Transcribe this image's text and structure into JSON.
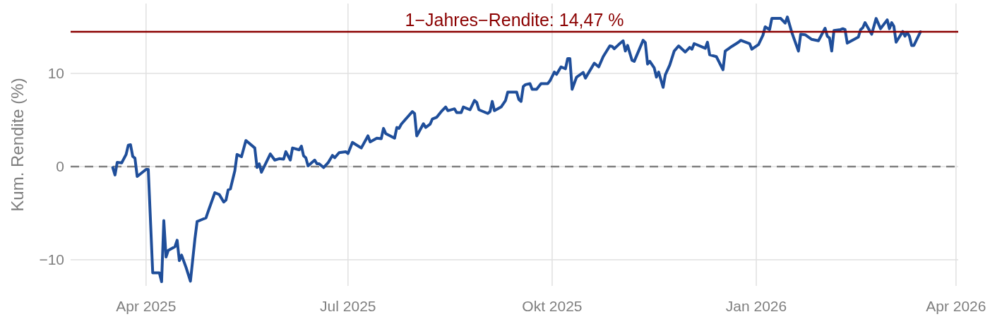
{
  "chart_data": {
    "type": "line",
    "ylabel": "Kum. Rendite (%)",
    "xlim": [
      "2025-02-26",
      "2026-04-02"
    ],
    "ylim": [
      -12.8,
      17.5
    ],
    "xticks": [
      {
        "value": "2025-04-01",
        "label": "Apr 2025"
      },
      {
        "value": "2025-07-01",
        "label": "Jul 2025"
      },
      {
        "value": "2025-10-01",
        "label": "Okt 2025"
      },
      {
        "value": "2026-01-01",
        "label": "Jan 2026"
      },
      {
        "value": "2026-04-01",
        "label": "Apr 2026"
      }
    ],
    "yticks": [
      {
        "value": -10,
        "label": "−10"
      },
      0,
      10
    ],
    "grid": true,
    "marker": "none",
    "line_style": "solid",
    "ref_lines": [
      {
        "axis": "y",
        "value": 0,
        "color": "#808080",
        "line_style": "dashed"
      },
      {
        "axis": "y",
        "value": 14.47,
        "label": "1−Jahres−Rendite: 14,47 %",
        "color": "#8b0000",
        "line_style": "solid"
      }
    ],
    "series": [
      {
        "color": "#1f4e9a",
        "x": [
          "2025-03-17",
          "2025-03-18",
          "2025-03-19",
          "2025-03-21",
          "2025-03-23",
          "2025-03-24",
          "2025-03-25",
          "2025-03-26",
          "2025-03-27",
          "2025-03-28",
          "2025-04-01",
          "2025-04-02",
          "2025-04-04",
          "2025-04-07",
          "2025-04-08",
          "2025-04-09",
          "2025-04-10",
          "2025-04-11",
          "2025-04-14",
          "2025-04-15",
          "2025-04-16",
          "2025-04-17",
          "2025-04-19",
          "2025-04-21",
          "2025-04-23",
          "2025-04-24",
          "2025-04-26",
          "2025-04-28",
          "2025-04-29",
          "2025-05-02",
          "2025-05-04",
          "2025-05-06",
          "2025-05-07",
          "2025-05-08",
          "2025-05-09",
          "2025-05-11",
          "2025-05-12",
          "2025-05-14",
          "2025-05-16",
          "2025-05-20",
          "2025-05-21",
          "2025-05-22",
          "2025-05-23",
          "2025-05-27",
          "2025-05-29",
          "2025-05-31",
          "2025-06-02",
          "2025-06-03",
          "2025-06-05",
          "2025-06-06",
          "2025-06-09",
          "2025-06-10",
          "2025-06-11",
          "2025-06-12",
          "2025-06-13",
          "2025-06-16",
          "2025-06-17",
          "2025-06-18",
          "2025-06-20",
          "2025-06-22",
          "2025-06-24",
          "2025-06-25",
          "2025-06-27",
          "2025-06-30",
          "2025-07-01",
          "2025-07-03",
          "2025-07-07",
          "2025-07-10",
          "2025-07-11",
          "2025-07-14",
          "2025-07-16",
          "2025-07-17",
          "2025-07-18",
          "2025-07-22",
          "2025-07-23",
          "2025-07-24",
          "2025-07-25",
          "2025-07-27",
          "2025-07-30",
          "2025-07-31",
          "2025-08-01",
          "2025-08-04",
          "2025-08-05",
          "2025-08-07",
          "2025-08-08",
          "2025-08-10",
          "2025-08-12",
          "2025-08-14",
          "2025-08-15",
          "2025-08-18",
          "2025-08-19",
          "2025-08-21",
          "2025-08-22",
          "2025-08-25",
          "2025-08-27",
          "2025-08-28",
          "2025-08-29",
          "2025-09-02",
          "2025-09-03",
          "2025-09-04",
          "2025-09-05",
          "2025-09-08",
          "2025-09-10",
          "2025-09-11",
          "2025-09-15",
          "2025-09-16",
          "2025-09-17",
          "2025-09-18",
          "2025-09-19",
          "2025-09-21",
          "2025-09-22",
          "2025-09-24",
          "2025-09-26",
          "2025-09-29",
          "2025-09-30",
          "2025-10-02",
          "2025-10-03",
          "2025-10-05",
          "2025-10-07",
          "2025-10-08",
          "2025-10-09",
          "2025-10-10",
          "2025-10-12",
          "2025-10-15",
          "2025-10-16",
          "2025-10-20",
          "2025-10-22",
          "2025-10-24",
          "2025-10-27",
          "2025-10-28",
          "2025-10-29",
          "2025-10-31",
          "2025-11-02",
          "2025-11-03",
          "2025-11-04",
          "2025-11-06",
          "2025-11-07",
          "2025-11-11",
          "2025-11-12",
          "2025-11-13",
          "2025-11-14",
          "2025-11-16",
          "2025-11-17",
          "2025-11-18",
          "2025-11-20",
          "2025-11-21",
          "2025-11-23",
          "2025-11-25",
          "2025-11-27",
          "2025-11-30",
          "2025-12-02",
          "2025-12-03",
          "2025-12-04",
          "2025-12-09",
          "2025-12-10",
          "2025-12-11",
          "2025-12-14",
          "2025-12-17",
          "2025-12-18",
          "2025-12-21",
          "2025-12-24",
          "2025-12-25",
          "2025-12-29",
          "2025-12-30",
          "2026-01-02",
          "2026-01-04",
          "2026-01-05",
          "2026-01-07",
          "2026-01-08",
          "2026-01-12",
          "2026-01-14",
          "2026-01-15",
          "2026-01-17",
          "2026-01-20",
          "2026-01-21",
          "2026-01-23",
          "2026-01-26",
          "2026-01-29",
          "2026-02-01",
          "2026-02-02",
          "2026-02-03",
          "2026-02-04",
          "2026-02-05",
          "2026-02-08",
          "2026-02-09",
          "2026-02-10",
          "2026-02-11",
          "2026-02-16",
          "2026-02-17",
          "2026-02-18",
          "2026-02-19",
          "2026-02-22",
          "2026-02-24",
          "2026-02-26",
          "2026-03-01",
          "2026-03-02",
          "2026-03-03",
          "2026-03-04",
          "2026-03-05",
          "2026-03-08",
          "2026-03-09",
          "2026-03-10",
          "2026-03-11",
          "2026-03-12",
          "2026-03-13",
          "2026-03-16"
        ],
        "values": [
          -0.1,
          -0.9,
          0.45,
          0.4,
          1.3,
          2.3,
          2.35,
          1.1,
          0.9,
          -1.06,
          -0.3,
          -0.3,
          -11.4,
          -11.4,
          -12.35,
          -5.8,
          -9.7,
          -9.0,
          -8.6,
          -7.9,
          -10.1,
          -9.5,
          -10.8,
          -12.3,
          -7.8,
          -5.9,
          -5.7,
          -5.5,
          -4.8,
          -2.8,
          -3.0,
          -3.8,
          -3.6,
          -2.5,
          -2.4,
          -0.45,
          1.3,
          1.06,
          2.8,
          2.0,
          -0.1,
          0.3,
          -0.6,
          1.36,
          0.7,
          0.85,
          0.8,
          1.6,
          0.7,
          2.0,
          1.8,
          2.2,
          1.15,
          0.95,
          0.08,
          0.7,
          0.3,
          0.3,
          -0.1,
          0.4,
          1.2,
          0.95,
          1.5,
          1.6,
          1.4,
          2.6,
          2.0,
          3.3,
          2.65,
          3.05,
          3.0,
          4.1,
          3.55,
          3.05,
          4.2,
          4.1,
          4.55,
          5.1,
          5.9,
          5.7,
          3.3,
          4.6,
          4.2,
          4.55,
          5.1,
          5.3,
          5.9,
          6.4,
          6.0,
          6.2,
          5.8,
          5.8,
          6.4,
          6.1,
          7.1,
          6.9,
          6.1,
          5.7,
          5.9,
          7.0,
          6.0,
          6.4,
          7.1,
          8.0,
          8.0,
          7.2,
          7.0,
          8.6,
          8.8,
          8.9,
          8.3,
          8.3,
          8.9,
          8.9,
          9.2,
          10.15,
          9.9,
          10.7,
          10.5,
          11.6,
          11.6,
          8.3,
          9.6,
          10.1,
          9.5,
          11.1,
          10.7,
          11.8,
          12.95,
          12.9,
          12.65,
          13.1,
          13.5,
          12.4,
          13.0,
          11.4,
          11.3,
          13.55,
          13.3,
          11.0,
          11.3,
          10.6,
          9.6,
          10.15,
          8.5,
          9.85,
          10.9,
          12.4,
          12.95,
          12.3,
          12.8,
          12.6,
          13.2,
          12.7,
          13.35,
          12.0,
          11.8,
          10.4,
          12.4,
          12.9,
          13.35,
          13.55,
          13.2,
          12.6,
          13.1,
          14.1,
          15.0,
          14.7,
          15.9,
          15.9,
          15.4,
          16.05,
          14.4,
          12.4,
          14.2,
          14.15,
          13.65,
          13.5,
          14.85,
          14.0,
          13.8,
          12.4,
          14.6,
          14.7,
          14.8,
          14.7,
          13.25,
          13.9,
          14.7,
          14.9,
          15.45,
          14.2,
          15.9,
          14.8,
          15.75,
          14.8,
          15.45,
          15.05,
          13.35,
          14.5,
          14.0,
          14.4,
          14.0,
          13.0,
          13.0,
          14.47
        ]
      }
    ]
  }
}
